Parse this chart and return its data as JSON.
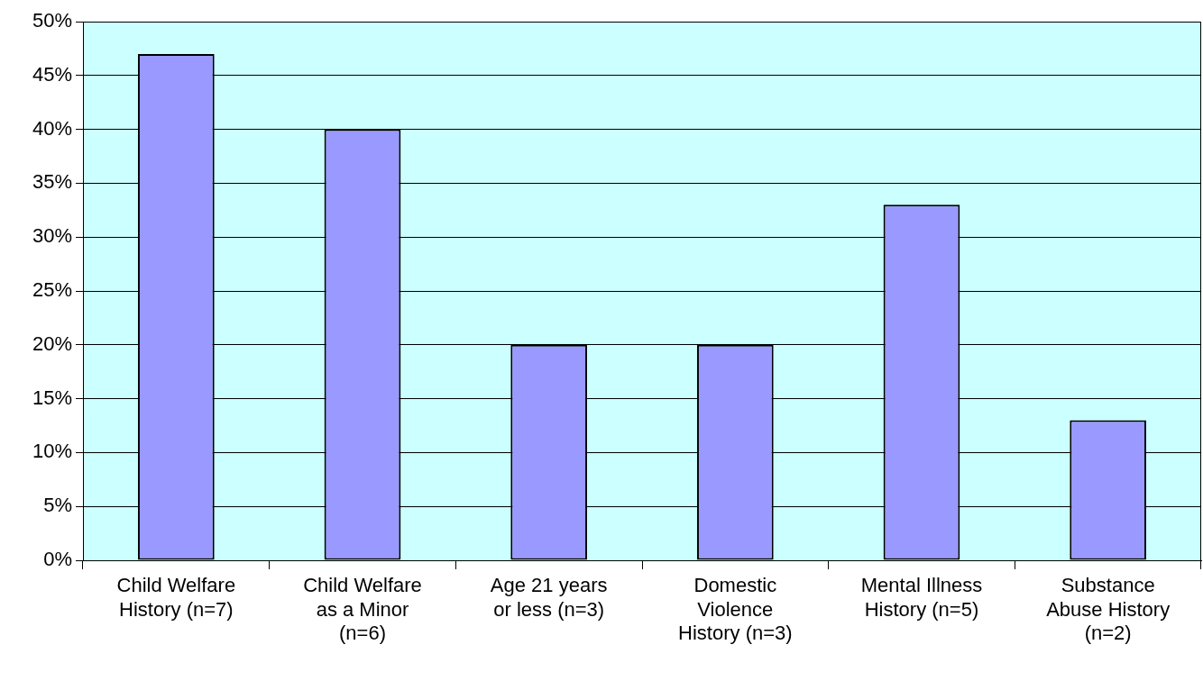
{
  "chart_data": {
    "type": "bar",
    "categories": [
      "Child Welfare\nHistory (n=7)",
      "Child Welfare\nas a Minor\n(n=6)",
      "Age 21 years\nor less (n=3)",
      "Domestic\nViolence\nHistory (n=3)",
      "Mental Illness\nHistory (n=5)",
      "Substance\nAbuse History\n(n=2)"
    ],
    "values": [
      47,
      40,
      20,
      20,
      33,
      13
    ],
    "color": "#9999ff",
    "ylim": [
      0,
      50
    ],
    "yticks": [
      {
        "value": 0,
        "label": "0%"
      },
      {
        "value": 5,
        "label": "5%"
      },
      {
        "value": 10,
        "label": "10%"
      },
      {
        "value": 15,
        "label": "15%"
      },
      {
        "value": 20,
        "label": "20%"
      },
      {
        "value": 25,
        "label": "25%"
      },
      {
        "value": 30,
        "label": "30%"
      },
      {
        "value": 35,
        "label": "35%"
      },
      {
        "value": 40,
        "label": "40%"
      },
      {
        "value": 45,
        "label": "45%"
      },
      {
        "value": 50,
        "label": "50%"
      }
    ],
    "grid": "y",
    "legend": false
  }
}
